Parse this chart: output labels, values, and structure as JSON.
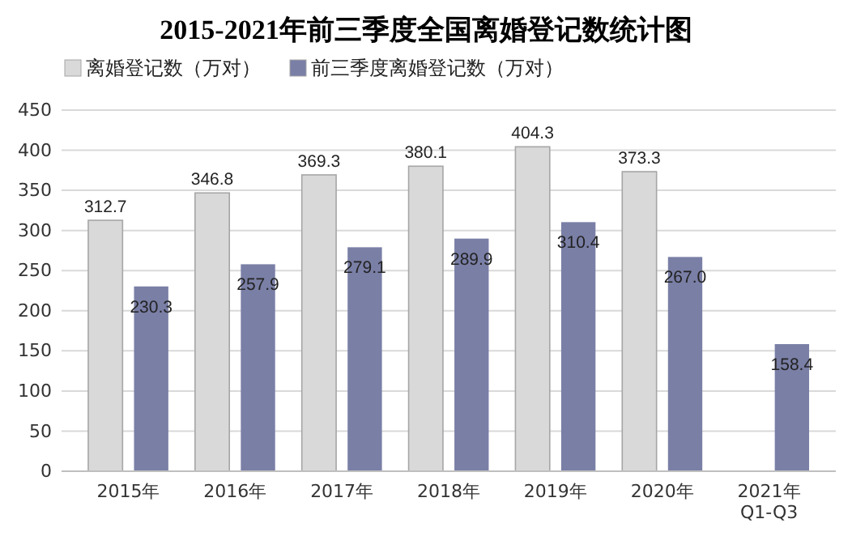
{
  "chart_data": {
    "type": "bar",
    "title": "2015-2021年前三季度全国离婚登记数统计图",
    "categories": [
      "2015年",
      "2016年",
      "2017年",
      "2018年",
      "2019年",
      "2020年",
      "2021年 Q1-Q3"
    ],
    "series": [
      {
        "name": "离婚登记数（万对）",
        "color": "#d9d9d9",
        "values": [
          312.7,
          346.8,
          369.3,
          380.1,
          404.3,
          373.3,
          null
        ],
        "value_labels": [
          "312.7",
          "346.8",
          "369.3",
          "380.1",
          "404.3",
          "373.3",
          null
        ]
      },
      {
        "name": "前三季度离婚登记数（万对）",
        "color": "#7a7fa6",
        "values": [
          230.3,
          257.9,
          279.1,
          289.9,
          310.4,
          267.0,
          158.4
        ],
        "value_labels": [
          "230.3",
          "257.9",
          "279.1",
          "289.9",
          "310.4",
          "267.0",
          "158.4"
        ]
      }
    ],
    "ylim": [
      0,
      450
    ],
    "yticks": [
      0,
      50,
      100,
      150,
      200,
      250,
      300,
      350,
      400,
      450
    ],
    "grid": "y",
    "legend": "top"
  }
}
